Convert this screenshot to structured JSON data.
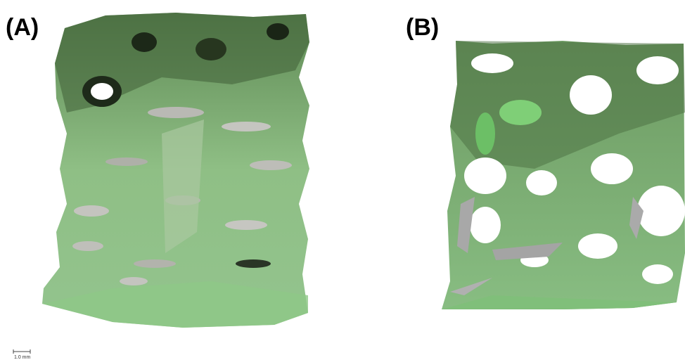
{
  "panels": [
    {
      "label": "(A)"
    },
    {
      "label": "(B)"
    }
  ],
  "scale_bar": {
    "label": "1.0 mm"
  }
}
